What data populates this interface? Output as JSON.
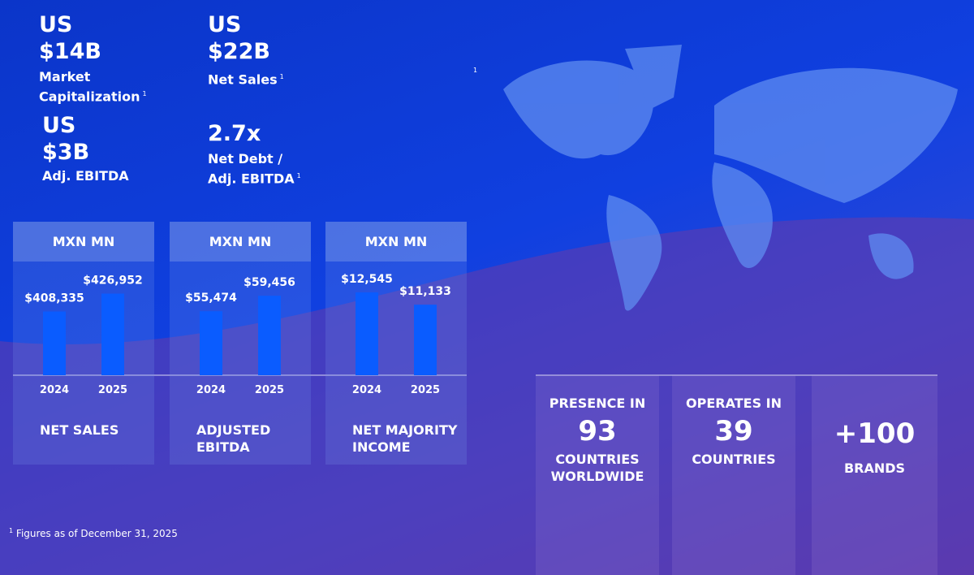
{
  "metrics": [
    {
      "currency": "US",
      "value": "$14B",
      "label": "Market Capitalization",
      "note": "1"
    },
    {
      "currency": "US",
      "value": "$22B",
      "label": "Net Sales",
      "note": "1"
    },
    {
      "currency": "US",
      "value": "$3B",
      "label": "Adj. EBITDA"
    },
    {
      "value": "2.7x",
      "label": "Net Debt / Adj. EBITDA",
      "note": "1"
    }
  ],
  "stray_note": "1",
  "chart_data": [
    {
      "type": "bar",
      "title": "MXN MN",
      "caption": "NET SALES",
      "categories": [
        "2024",
        "2025"
      ],
      "values": [
        408335,
        426952
      ],
      "value_labels": [
        "$408,335",
        "$426,952"
      ],
      "color": "#0a5cff",
      "ylim": [
        342000,
        435000
      ]
    },
    {
      "type": "bar",
      "title": "MXN MN",
      "caption": "ADJUSTED EBITDA",
      "categories": [
        "2024",
        "2025"
      ],
      "values": [
        55474,
        59456
      ],
      "value_labels": [
        "$55,474",
        "$59,456"
      ],
      "color": "#0a5cff",
      "ylim": [
        39000,
        62000
      ]
    },
    {
      "type": "bar",
      "title": "MXN MN",
      "caption": "NET MAJORITY INCOME",
      "categories": [
        "2024",
        "2025"
      ],
      "values": [
        12545,
        11133
      ],
      "value_labels": [
        "$12,545",
        "$11,133"
      ],
      "color": "#0a5cff",
      "ylim": [
        3000,
        13300
      ]
    }
  ],
  "stats": [
    {
      "top": "PRESENCE IN",
      "number": "93",
      "bottom": "COUNTRIES WORLDWIDE"
    },
    {
      "top": "OPERATES IN",
      "number": "39",
      "bottom": "COUNTRIES"
    },
    {
      "number": "+100",
      "bottom": "BRANDS"
    }
  ],
  "footnote": {
    "note": "1",
    "text": "Figures as of December 31, 2025"
  }
}
